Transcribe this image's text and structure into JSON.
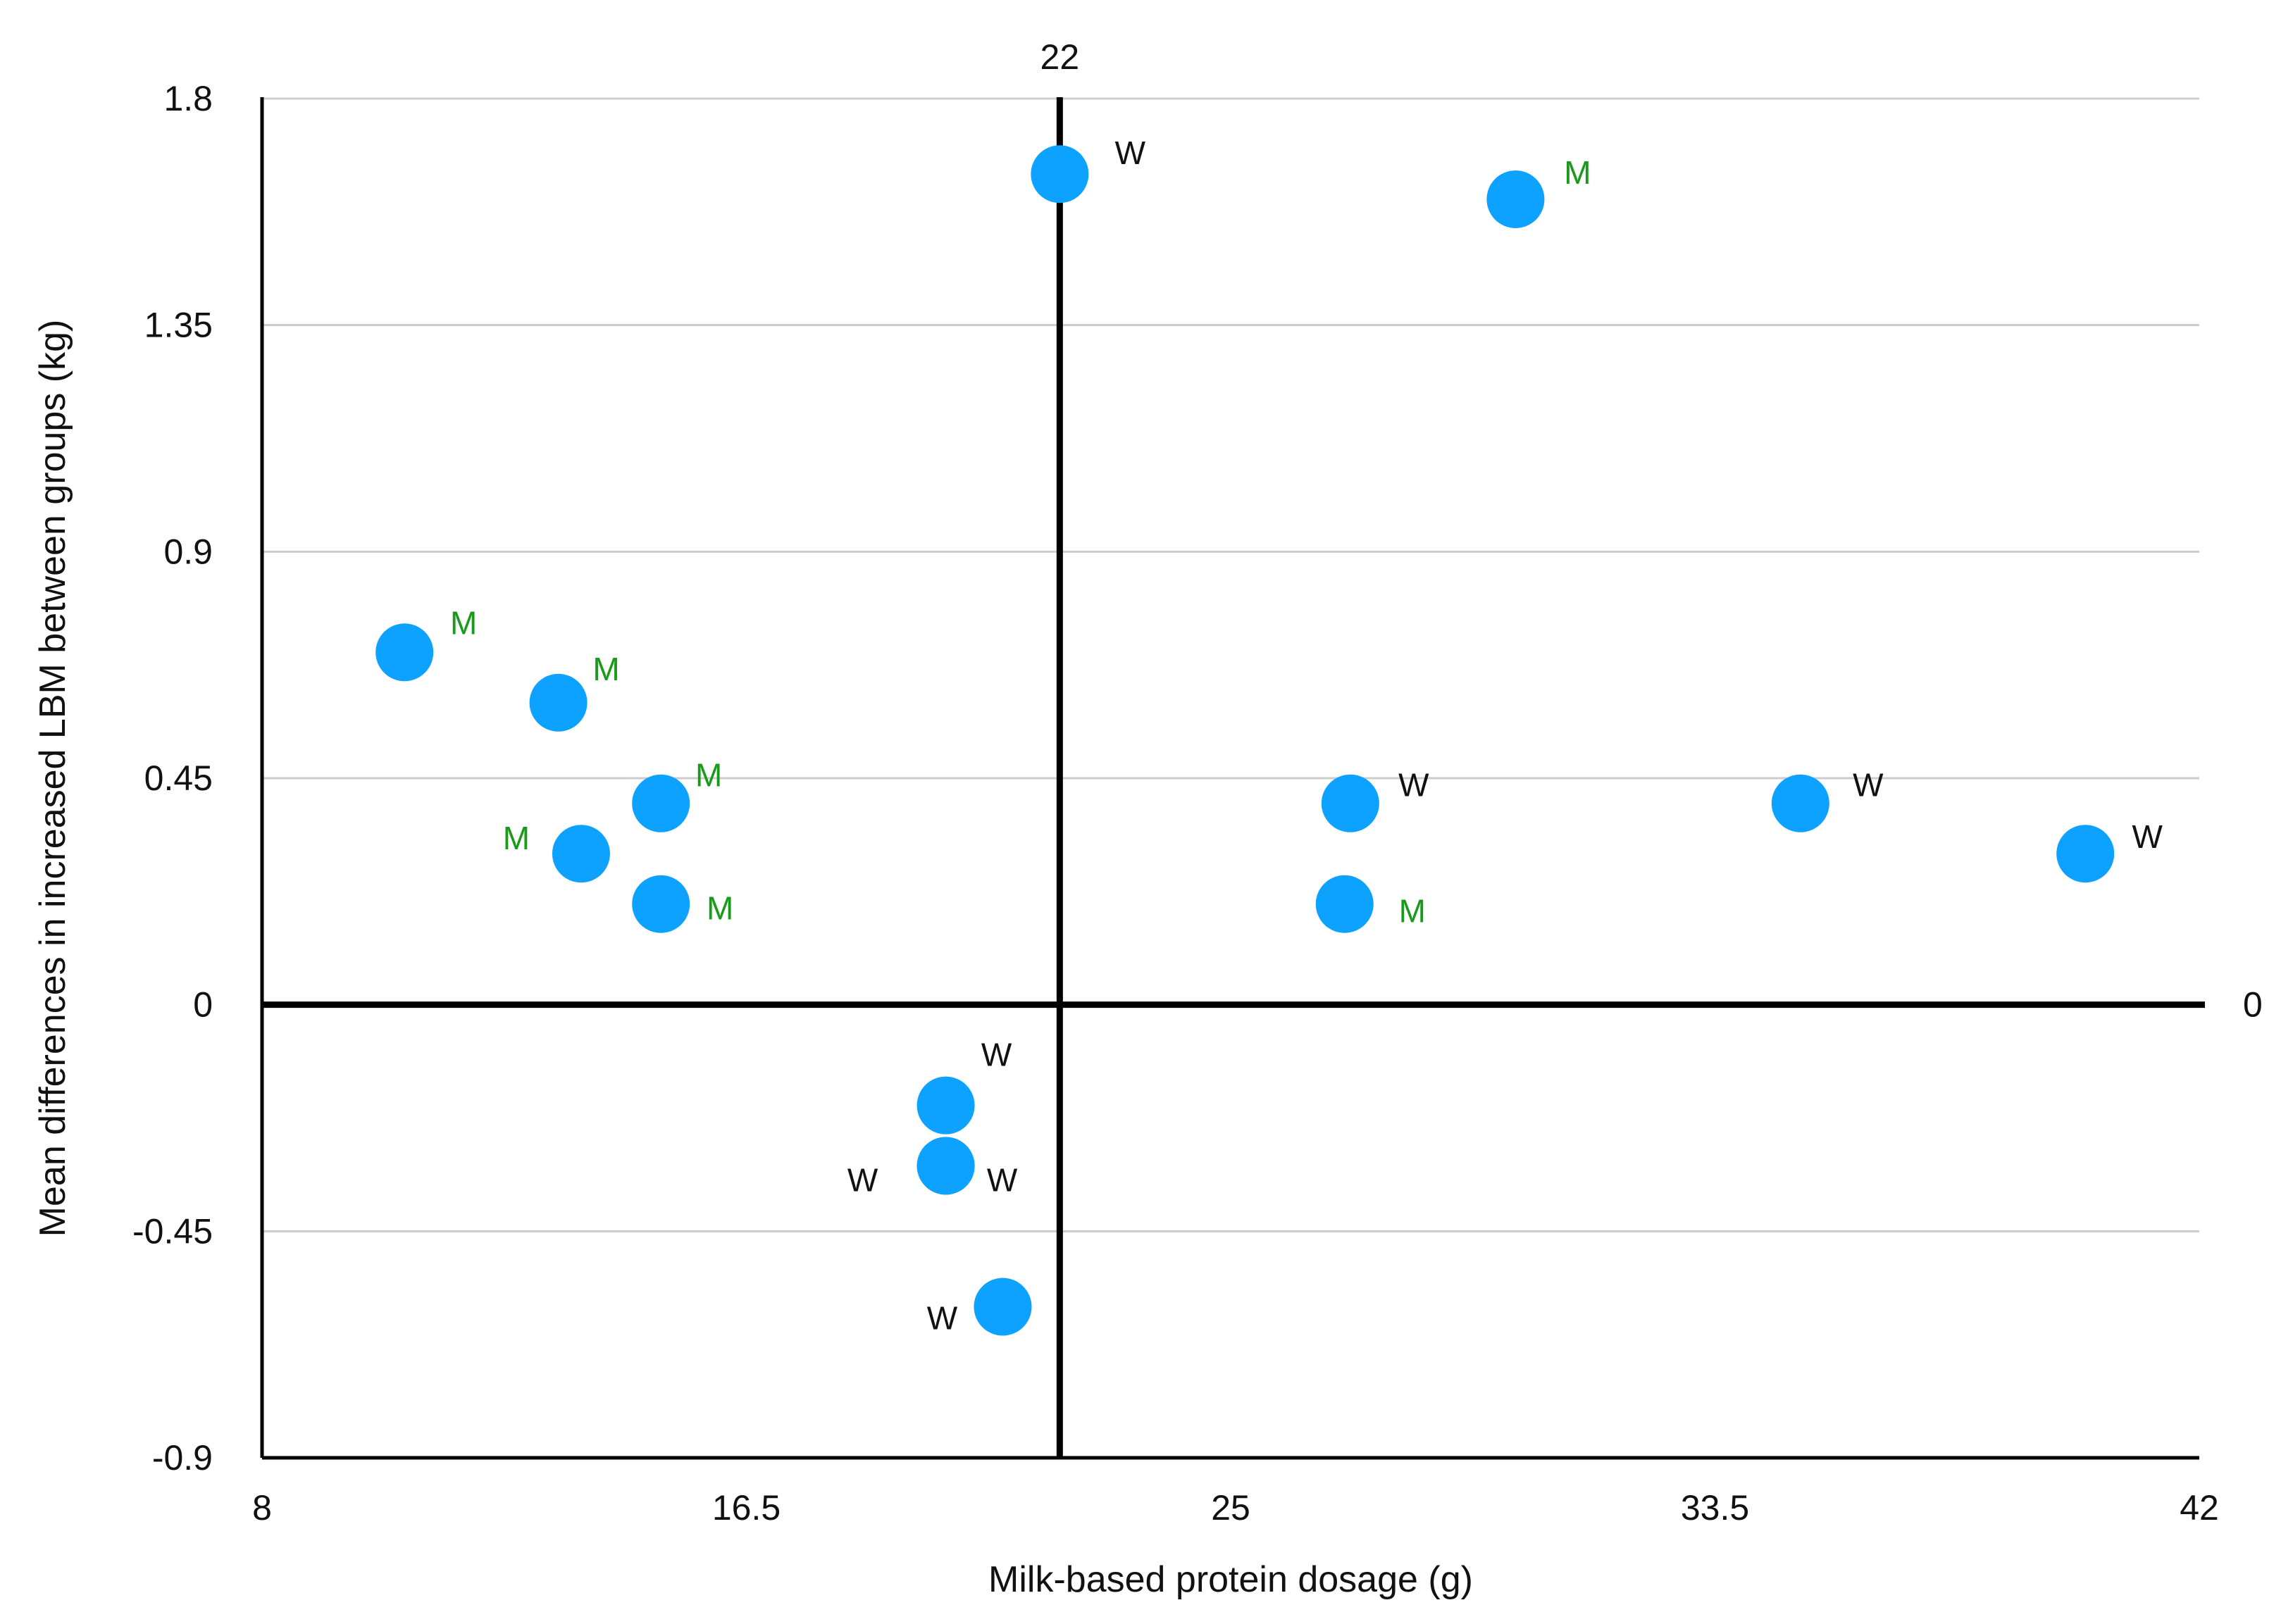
{
  "chart_data": {
    "type": "scatter",
    "title": "",
    "xlabel": "Milk-based protein dosage (g)",
    "ylabel": "Mean differences in increased LBM between groups (kg)",
    "xlim": [
      8,
      42
    ],
    "ylim": [
      -0.9,
      1.8
    ],
    "x_ticks": [
      "8",
      "16.5",
      "25",
      "33.5",
      "42"
    ],
    "y_ticks": [
      "-0.9",
      "-0.45",
      "0",
      "0.45",
      "0.9",
      "1.35",
      "1.8"
    ],
    "grid": true,
    "reference_lines": {
      "vertical": {
        "x": 22,
        "label": "22"
      },
      "horizontal": {
        "y": 0,
        "label": "0"
      }
    },
    "legend": "none",
    "colors": {
      "marker": "#0da2ff",
      "label_M": "#1a9a1a",
      "label_W": "#111111",
      "grid": "#cccccc",
      "axis": "#000000"
    },
    "points": [
      {
        "x": 22,
        "y": 1.65,
        "label": "W"
      },
      {
        "x": 30,
        "y": 1.6,
        "label": "M"
      },
      {
        "x": 10.5,
        "y": 0.7,
        "label": "M"
      },
      {
        "x": 13.2,
        "y": 0.6,
        "label": "M"
      },
      {
        "x": 15,
        "y": 0.4,
        "label": "M"
      },
      {
        "x": 13.6,
        "y": 0.3,
        "label": "M"
      },
      {
        "x": 15,
        "y": 0.2,
        "label": "M"
      },
      {
        "x": 27.1,
        "y": 0.4,
        "label": "W"
      },
      {
        "x": 27,
        "y": 0.2,
        "label": "M"
      },
      {
        "x": 35,
        "y": 0.4,
        "label": "W"
      },
      {
        "x": 40,
        "y": 0.3,
        "label": "W"
      },
      {
        "x": 20,
        "y": -0.2,
        "label": "W"
      },
      {
        "x": 20,
        "y": -0.32,
        "label": "W"
      },
      {
        "x": 20,
        "y": -0.32,
        "label": "W"
      },
      {
        "x": 21,
        "y": -0.6,
        "label": "W"
      }
    ]
  }
}
